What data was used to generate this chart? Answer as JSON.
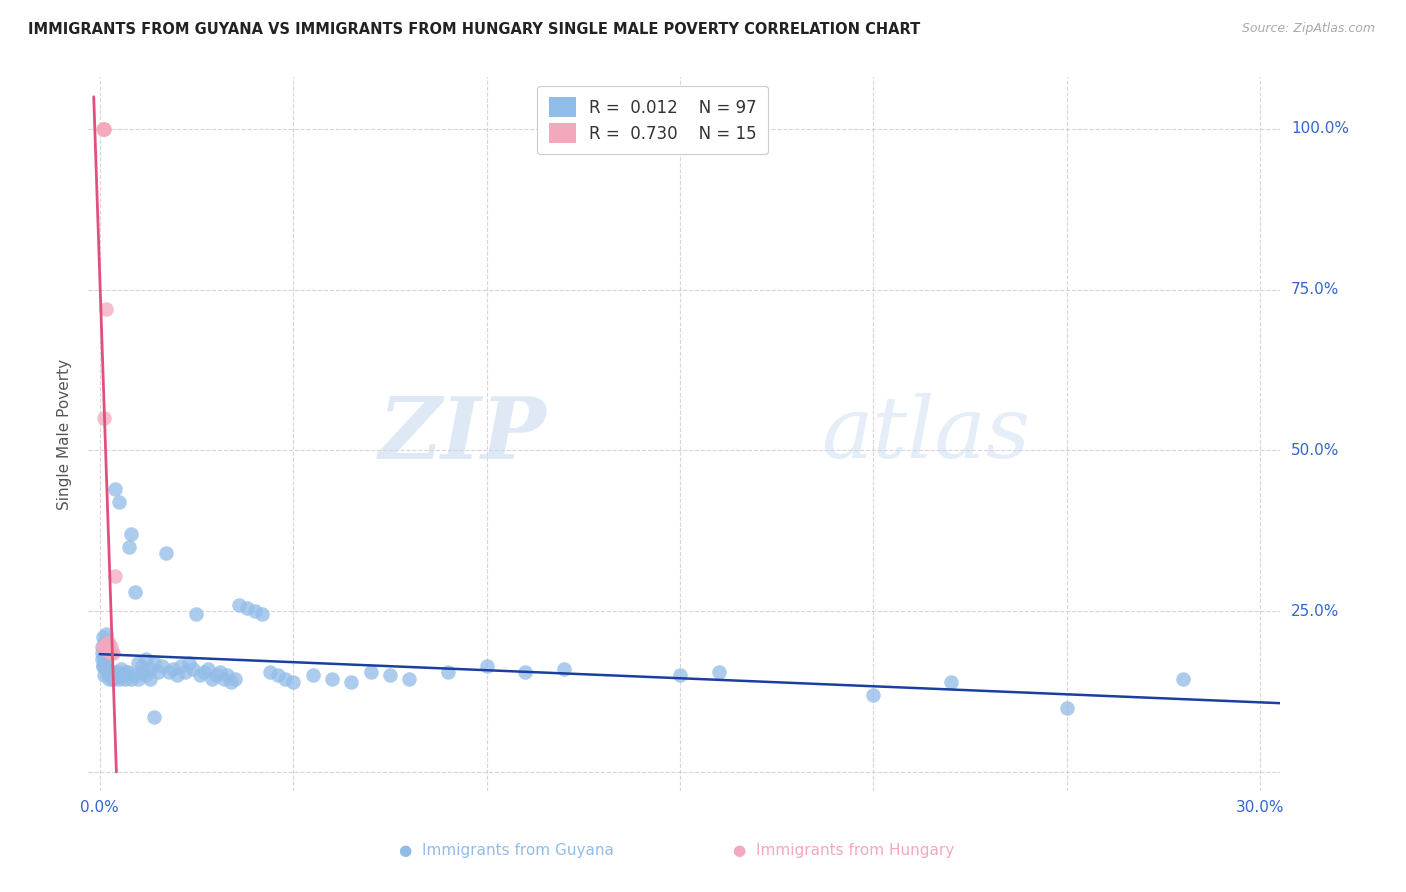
{
  "title": "IMMIGRANTS FROM GUYANA VS IMMIGRANTS FROM HUNGARY SINGLE MALE POVERTY CORRELATION CHART",
  "source": "Source: ZipAtlas.com",
  "ylabel": "Single Male Poverty",
  "xlim": [
    -0.003,
    0.305
  ],
  "ylim": [
    -0.03,
    1.08
  ],
  "xticks": [
    0.0,
    0.05,
    0.1,
    0.15,
    0.2,
    0.25,
    0.3
  ],
  "yticks": [
    0.0,
    0.25,
    0.5,
    0.75,
    1.0
  ],
  "guyana_color": "#92bce8",
  "hungary_color": "#f4a8bc",
  "guyana_line_color": "#1a3fa0",
  "hungary_line_color": "#e0507a",
  "guyana_R": 0.012,
  "guyana_N": 97,
  "hungary_R": 0.73,
  "hungary_N": 15,
  "watermark_zip": "ZIP",
  "watermark_atlas": "atlas",
  "background_color": "#ffffff",
  "grid_color": "#cccccc",
  "guyana_x": [
    0.0005,
    0.0008,
    0.001,
    0.0012,
    0.0015,
    0.0005,
    0.0008,
    0.001,
    0.0015,
    0.002,
    0.001,
    0.0015,
    0.002,
    0.0025,
    0.0008,
    0.0012,
    0.0005,
    0.001,
    0.0015,
    0.002,
    0.0025,
    0.003,
    0.0035,
    0.004,
    0.0045,
    0.005,
    0.0055,
    0.006,
    0.0065,
    0.007,
    0.0075,
    0.008,
    0.009,
    0.01,
    0.011,
    0.012,
    0.013,
    0.014,
    0.015,
    0.016,
    0.017,
    0.018,
    0.019,
    0.02,
    0.021,
    0.022,
    0.023,
    0.024,
    0.025,
    0.026,
    0.027,
    0.028,
    0.029,
    0.03,
    0.031,
    0.032,
    0.033,
    0.034,
    0.035,
    0.036,
    0.038,
    0.04,
    0.042,
    0.044,
    0.046,
    0.048,
    0.05,
    0.055,
    0.06,
    0.065,
    0.07,
    0.075,
    0.08,
    0.09,
    0.1,
    0.11,
    0.12,
    0.15,
    0.16,
    0.2,
    0.22,
    0.25,
    0.28,
    0.0025,
    0.003,
    0.0035,
    0.004,
    0.005,
    0.006,
    0.007,
    0.008,
    0.009,
    0.01,
    0.011,
    0.012,
    0.013,
    0.014
  ],
  "guyana_y": [
    0.175,
    0.165,
    0.18,
    0.17,
    0.185,
    0.195,
    0.21,
    0.2,
    0.215,
    0.19,
    0.15,
    0.16,
    0.155,
    0.145,
    0.165,
    0.175,
    0.185,
    0.195,
    0.2,
    0.16,
    0.155,
    0.15,
    0.145,
    0.44,
    0.155,
    0.42,
    0.16,
    0.15,
    0.145,
    0.155,
    0.35,
    0.37,
    0.28,
    0.17,
    0.165,
    0.175,
    0.16,
    0.17,
    0.155,
    0.165,
    0.34,
    0.155,
    0.16,
    0.15,
    0.165,
    0.155,
    0.17,
    0.16,
    0.245,
    0.15,
    0.155,
    0.16,
    0.145,
    0.15,
    0.155,
    0.145,
    0.15,
    0.14,
    0.145,
    0.26,
    0.255,
    0.25,
    0.245,
    0.155,
    0.15,
    0.145,
    0.14,
    0.15,
    0.145,
    0.14,
    0.155,
    0.15,
    0.145,
    0.155,
    0.165,
    0.155,
    0.16,
    0.15,
    0.155,
    0.12,
    0.14,
    0.1,
    0.145,
    0.155,
    0.15,
    0.145,
    0.155,
    0.145,
    0.15,
    0.155,
    0.145,
    0.15,
    0.145,
    0.155,
    0.15,
    0.145,
    0.085
  ],
  "hungary_x": [
    0.0008,
    0.001,
    0.0012,
    0.0015,
    0.0018,
    0.002,
    0.0025,
    0.003,
    0.0035,
    0.001,
    0.002,
    0.003,
    0.0008,
    0.0012,
    0.004
  ],
  "hungary_y": [
    1.0,
    1.0,
    1.0,
    0.72,
    0.19,
    0.19,
    0.2,
    0.195,
    0.185,
    0.55,
    0.2,
    0.185,
    0.195,
    0.195,
    0.305
  ]
}
